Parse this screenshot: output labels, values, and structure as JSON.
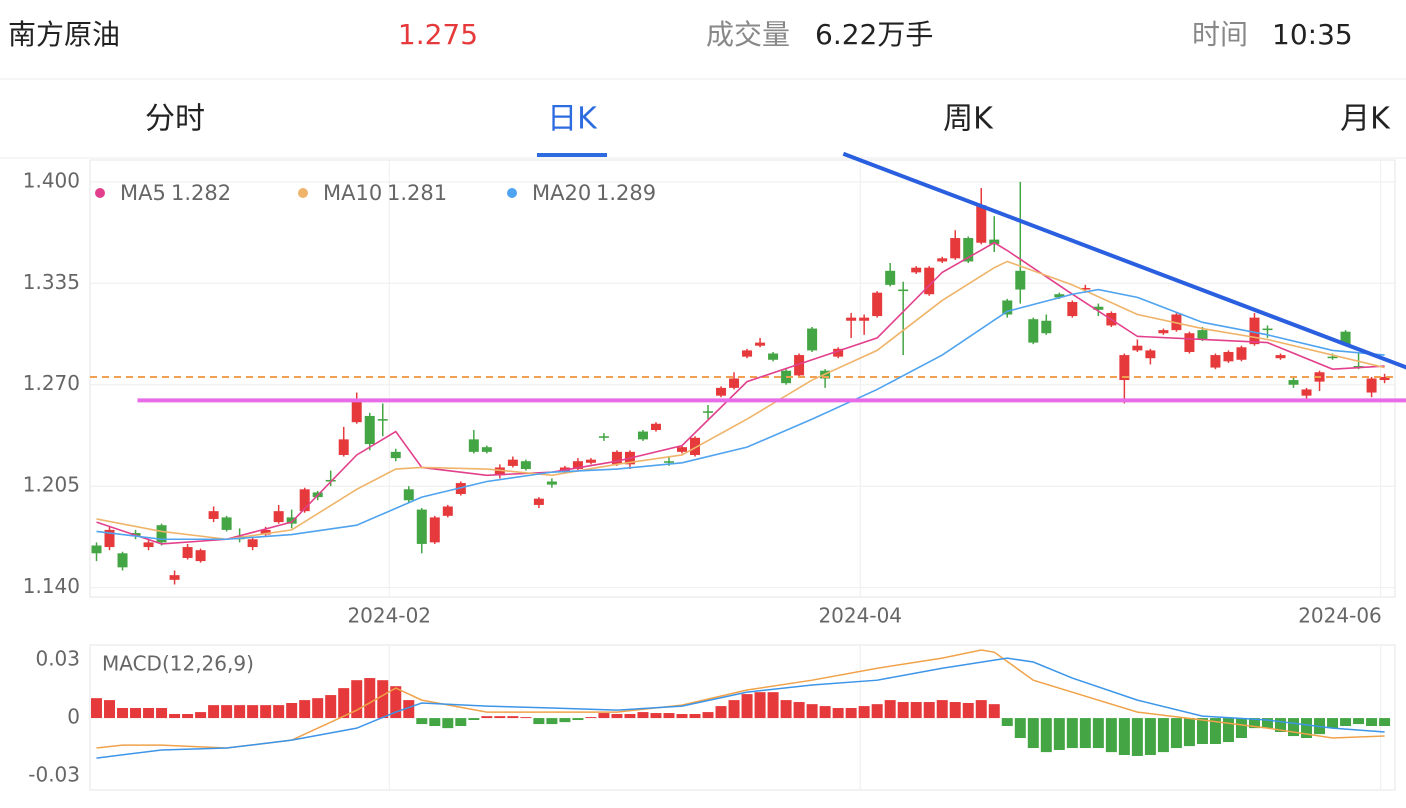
{
  "header": {
    "name": "南方原油",
    "price": "1.275",
    "volume_label": "成交量",
    "volume": "6.22万手",
    "time_label": "时间",
    "time": "10:35"
  },
  "tabs": [
    "分时",
    "日K",
    "周K",
    "月K"
  ],
  "active_tab": 1,
  "chart_data": [
    {
      "type": "candlestick",
      "xlim": [
        -0.5,
        99.8
      ],
      "ylim": [
        1.134,
        1.414
      ],
      "xticks": [
        {
          "value": 22.5,
          "label": "2024-02"
        },
        {
          "value": 58.7,
          "label": "2024-04"
        },
        {
          "value": 98.7,
          "label": "2024-06"
        }
      ],
      "yticks": [
        {
          "value": 1.4,
          "label": "1.400"
        },
        1.335,
        {
          "value": 1.27,
          "label": "1.270"
        },
        1.205,
        {
          "value": 1.14,
          "label": "1.140"
        }
      ],
      "grid": true,
      "up_color": "#e5393b",
      "down_color": "#44a544",
      "candles": [
        [
          1.167,
          1.169,
          1.157,
          1.162
        ],
        [
          1.166,
          1.179,
          1.164,
          1.177
        ],
        [
          1.162,
          1.163,
          1.151,
          1.153
        ],
        [
          1.175,
          1.177,
          1.171,
          1.173
        ],
        [
          1.166,
          1.171,
          1.164,
          1.169
        ],
        [
          1.18,
          1.181,
          1.167,
          1.169
        ],
        [
          1.145,
          1.151,
          1.142,
          1.148
        ],
        [
          1.159,
          1.168,
          1.158,
          1.166
        ],
        [
          1.157,
          1.165,
          1.156,
          1.164
        ],
        [
          1.184,
          1.192,
          1.182,
          1.189
        ],
        [
          1.185,
          1.186,
          1.176,
          1.177
        ],
        [
          1.173,
          1.178,
          1.169,
          1.171
        ],
        [
          1.166,
          1.172,
          1.164,
          1.171
        ],
        [
          1.174,
          1.179,
          1.173,
          1.177
        ],
        [
          1.182,
          1.193,
          1.181,
          1.189
        ],
        [
          1.185,
          1.19,
          1.178,
          1.181
        ],
        [
          1.189,
          1.204,
          1.188,
          1.203
        ],
        [
          1.201,
          1.202,
          1.196,
          1.198
        ],
        [
          1.209,
          1.215,
          1.205,
          1.208
        ],
        [
          1.225,
          1.243,
          1.224,
          1.235
        ],
        [
          1.246,
          1.265,
          1.245,
          1.26
        ],
        [
          1.25,
          1.252,
          1.228,
          1.232
        ],
        [
          1.248,
          1.258,
          1.237,
          1.247
        ],
        [
          1.227,
          1.229,
          1.221,
          1.223
        ],
        [
          1.203,
          1.205,
          1.194,
          1.196
        ],
        [
          1.19,
          1.191,
          1.162,
          1.168
        ],
        [
          1.169,
          1.186,
          1.168,
          1.185
        ],
        [
          1.186,
          1.193,
          1.185,
          1.192
        ],
        [
          1.2,
          1.208,
          1.199,
          1.207
        ],
        [
          1.235,
          1.241,
          1.226,
          1.227
        ],
        [
          1.23,
          1.231,
          1.226,
          1.227
        ],
        [
          1.212,
          1.219,
          1.21,
          1.217
        ],
        [
          1.218,
          1.224,
          1.217,
          1.222
        ],
        [
          1.221,
          1.222,
          1.215,
          1.216
        ],
        [
          1.193,
          1.198,
          1.191,
          1.197
        ],
        [
          1.208,
          1.21,
          1.204,
          1.206
        ],
        [
          1.214,
          1.218,
          1.213,
          1.217
        ],
        [
          1.216,
          1.223,
          1.215,
          1.221
        ],
        [
          1.22,
          1.223,
          1.219,
          1.222
        ],
        [
          1.237,
          1.239,
          1.234,
          1.236
        ],
        [
          1.219,
          1.228,
          1.218,
          1.227
        ],
        [
          1.219,
          1.228,
          1.216,
          1.227
        ],
        [
          1.24,
          1.241,
          1.234,
          1.235
        ],
        [
          1.241,
          1.246,
          1.24,
          1.245
        ],
        [
          1.221,
          1.224,
          1.218,
          1.22
        ],
        [
          1.227,
          1.231,
          1.226,
          1.23
        ],
        [
          1.225,
          1.237,
          1.224,
          1.236
        ],
        [
          1.253,
          1.257,
          1.248,
          1.252
        ],
        [
          1.263,
          1.269,
          1.262,
          1.268
        ],
        [
          1.268,
          1.278,
          1.267,
          1.274
        ],
        [
          1.288,
          1.293,
          1.287,
          1.292
        ],
        [
          1.295,
          1.3,
          1.294,
          1.297
        ],
        [
          1.29,
          1.291,
          1.285,
          1.286
        ],
        [
          1.279,
          1.28,
          1.27,
          1.271
        ],
        [
          1.276,
          1.29,
          1.275,
          1.289
        ],
        [
          1.306,
          1.307,
          1.291,
          1.292
        ],
        [
          1.279,
          1.28,
          1.268,
          1.274
        ],
        [
          1.288,
          1.294,
          1.287,
          1.293
        ],
        [
          1.311,
          1.316,
          1.3,
          1.313
        ],
        [
          1.311,
          1.315,
          1.302,
          1.313
        ],
        [
          1.314,
          1.33,
          1.313,
          1.329
        ],
        [
          1.343,
          1.348,
          1.333,
          1.334
        ],
        [
          1.331,
          1.336,
          1.289,
          1.33
        ],
        [
          1.342,
          1.346,
          1.341,
          1.345
        ],
        [
          1.328,
          1.346,
          1.327,
          1.345
        ],
        [
          1.349,
          1.352,
          1.348,
          1.351
        ],
        [
          1.351,
          1.369,
          1.35,
          1.364
        ],
        [
          1.364,
          1.365,
          1.348,
          1.349
        ],
        [
          1.361,
          1.396,
          1.36,
          1.385
        ],
        [
          1.363,
          1.378,
          1.355,
          1.36
        ],
        [
          1.324,
          1.325,
          1.313,
          1.315
        ],
        [
          1.343,
          1.4,
          1.322,
          1.331
        ],
        [
          1.312,
          1.313,
          1.296,
          1.297
        ],
        [
          1.311,
          1.315,
          1.302,
          1.303
        ],
        [
          1.328,
          1.329,
          1.325,
          1.326
        ],
        [
          1.314,
          1.324,
          1.313,
          1.323
        ],
        [
          1.331,
          1.334,
          1.329,
          1.332
        ],
        [
          1.32,
          1.322,
          1.314,
          1.318
        ],
        [
          1.308,
          1.317,
          1.307,
          1.316
        ],
        [
          1.273,
          1.29,
          1.258,
          1.289
        ],
        [
          1.292,
          1.299,
          1.291,
          1.295
        ],
        [
          1.287,
          1.293,
          1.283,
          1.292
        ],
        [
          1.303,
          1.306,
          1.302,
          1.305
        ],
        [
          1.305,
          1.316,
          1.304,
          1.315
        ],
        [
          1.291,
          1.304,
          1.29,
          1.303
        ],
        [
          1.305,
          1.307,
          1.298,
          1.299
        ],
        [
          1.281,
          1.29,
          1.28,
          1.289
        ],
        [
          1.285,
          1.292,
          1.284,
          1.291
        ],
        [
          1.286,
          1.295,
          1.285,
          1.294
        ],
        [
          1.296,
          1.316,
          1.295,
          1.313
        ],
        [
          1.306,
          1.308,
          1.3,
          1.305
        ],
        [
          1.287,
          1.29,
          1.286,
          1.289
        ],
        [
          1.273,
          1.275,
          1.268,
          1.27
        ],
        [
          1.263,
          1.268,
          1.261,
          1.267
        ],
        [
          1.272,
          1.279,
          1.266,
          1.278
        ],
        [
          1.288,
          1.29,
          1.286,
          1.287
        ],
        [
          1.304,
          1.305,
          1.295,
          1.296
        ],
        [
          1.282,
          1.29,
          1.28,
          1.281
        ],
        [
          1.265,
          1.275,
          1.262,
          1.274
        ],
        [
          1.273,
          1.277,
          1.271,
          1.275
        ]
      ],
      "series": [
        {
          "name": "MA5",
          "color": "#e2408c",
          "x": [
            0,
            5,
            10,
            15,
            20,
            23,
            25,
            30,
            35,
            40,
            45,
            50,
            55,
            60,
            65,
            69,
            70,
            75,
            80,
            85,
            90,
            95,
            99
          ],
          "values": [
            1.182,
            1.168,
            1.171,
            1.182,
            1.225,
            1.24,
            1.217,
            1.212,
            1.214,
            1.221,
            1.231,
            1.272,
            1.286,
            1.3,
            1.342,
            1.361,
            1.356,
            1.328,
            1.301,
            1.299,
            1.297,
            1.28,
            1.282
          ]
        },
        {
          "name": "MA10",
          "color": "#efb46a",
          "x": [
            0,
            5,
            10,
            15,
            20,
            23,
            25,
            30,
            35,
            40,
            45,
            50,
            55,
            60,
            65,
            69,
            70,
            75,
            80,
            85,
            90,
            95,
            99
          ],
          "values": [
            1.184,
            1.176,
            1.171,
            1.177,
            1.203,
            1.216,
            1.217,
            1.216,
            1.212,
            1.219,
            1.225,
            1.248,
            1.273,
            1.292,
            1.324,
            1.345,
            1.349,
            1.334,
            1.315,
            1.306,
            1.299,
            1.289,
            1.281
          ]
        },
        {
          "name": "MA20",
          "color": "#4fa3ef",
          "x": [
            0,
            5,
            10,
            15,
            20,
            25,
            30,
            35,
            40,
            45,
            50,
            55,
            60,
            65,
            70,
            75,
            77,
            80,
            85,
            90,
            95,
            99
          ],
          "values": [
            1.176,
            1.171,
            1.171,
            1.174,
            1.18,
            1.198,
            1.208,
            1.214,
            1.216,
            1.22,
            1.23,
            1.248,
            1.267,
            1.289,
            1.317,
            1.328,
            1.331,
            1.326,
            1.31,
            1.302,
            1.292,
            1.289
          ]
        }
      ],
      "reference_lines": [
        {
          "value": 1.275,
          "color": "#f0a050"
        }
      ],
      "trend_lines": [
        {
          "x": [
            3.15,
            100.7
          ],
          "values": [
            1.26,
            1.26
          ],
          "color": "#e86ce8"
        },
        {
          "x": [
            57.4,
            100.7
          ],
          "values": [
            1.418,
            1.281
          ],
          "color": "#2a5fe0"
        }
      ]
    },
    {
      "type": "macd",
      "label": "MACD(12,26,9)",
      "xlim": [
        -0.5,
        99.8
      ],
      "ylim": [
        -0.0372,
        0.0378
      ],
      "yticks": [
        0.03,
        0,
        -0.03
      ],
      "histogram": [
        0.0103,
        0.0093,
        0.0052,
        0.0052,
        0.0052,
        0.0052,
        0.0021,
        0.0021,
        0.0031,
        0.0067,
        0.0067,
        0.0067,
        0.0067,
        0.0067,
        0.0067,
        0.0078,
        0.0093,
        0.0103,
        0.0119,
        0.0155,
        0.0196,
        0.0207,
        0.0196,
        0.0165,
        0.0093,
        -0.0031,
        -0.0041,
        -0.0052,
        -0.0041,
        -0.001,
        0.001,
        0.001,
        0.001,
        0.0005,
        -0.0031,
        -0.0031,
        -0.0021,
        -0.001,
        0.0005,
        0.0026,
        0.0021,
        0.0021,
        0.0031,
        0.0026,
        0.0026,
        0.0021,
        0.0021,
        0.0031,
        0.0062,
        0.0093,
        0.0124,
        0.0134,
        0.0134,
        0.0093,
        0.0083,
        0.0072,
        0.0062,
        0.0052,
        0.0052,
        0.0062,
        0.0072,
        0.0093,
        0.0083,
        0.0083,
        0.0083,
        0.0093,
        0.0083,
        0.0078,
        0.0093,
        0.0072,
        -0.0041,
        -0.0103,
        -0.0155,
        -0.0176,
        -0.0165,
        -0.0155,
        -0.0155,
        -0.0155,
        -0.0176,
        -0.0191,
        -0.0196,
        -0.0191,
        -0.0176,
        -0.0155,
        -0.0145,
        -0.0134,
        -0.0134,
        -0.0124,
        -0.0103,
        -0.0052,
        -0.0052,
        -0.0072,
        -0.0093,
        -0.0103,
        -0.0083,
        -0.0052,
        -0.0041,
        -0.0031,
        -0.0041,
        -0.0041
      ],
      "up_color": "#e5393b",
      "down_color": "#44a544",
      "series": [
        {
          "color": "#f0a24a",
          "x": [
            0,
            2,
            5,
            10,
            15,
            20,
            23,
            25,
            30,
            35,
            40,
            45,
            50,
            55,
            60,
            65,
            68,
            69,
            72,
            75,
            80,
            85,
            90,
            95,
            99
          ],
          "values": [
            -0.0155,
            -0.014,
            -0.014,
            -0.0155,
            -0.0114,
            0.0041,
            0.0155,
            0.0093,
            0.0031,
            0.0031,
            0.0031,
            0.0067,
            0.0145,
            0.0196,
            0.0258,
            0.031,
            0.0352,
            0.0341,
            0.0196,
            0.0134,
            0.0031,
            -0.001,
            -0.0052,
            -0.0103,
            -0.0093
          ]
        },
        {
          "color": "#3c95e8",
          "x": [
            0,
            5,
            10,
            15,
            20,
            23,
            25,
            30,
            35,
            40,
            45,
            50,
            55,
            60,
            65,
            69,
            70,
            72,
            75,
            80,
            85,
            90,
            95,
            99
          ],
          "values": [
            -0.0207,
            -0.0165,
            -0.0155,
            -0.0114,
            -0.0052,
            0.0031,
            0.0078,
            0.0062,
            0.0052,
            0.0041,
            0.0062,
            0.0134,
            0.0171,
            0.0196,
            0.0258,
            0.03,
            0.031,
            0.029,
            0.0207,
            0.0093,
            0.001,
            -0.001,
            -0.0052,
            -0.0072
          ]
        }
      ]
    }
  ]
}
